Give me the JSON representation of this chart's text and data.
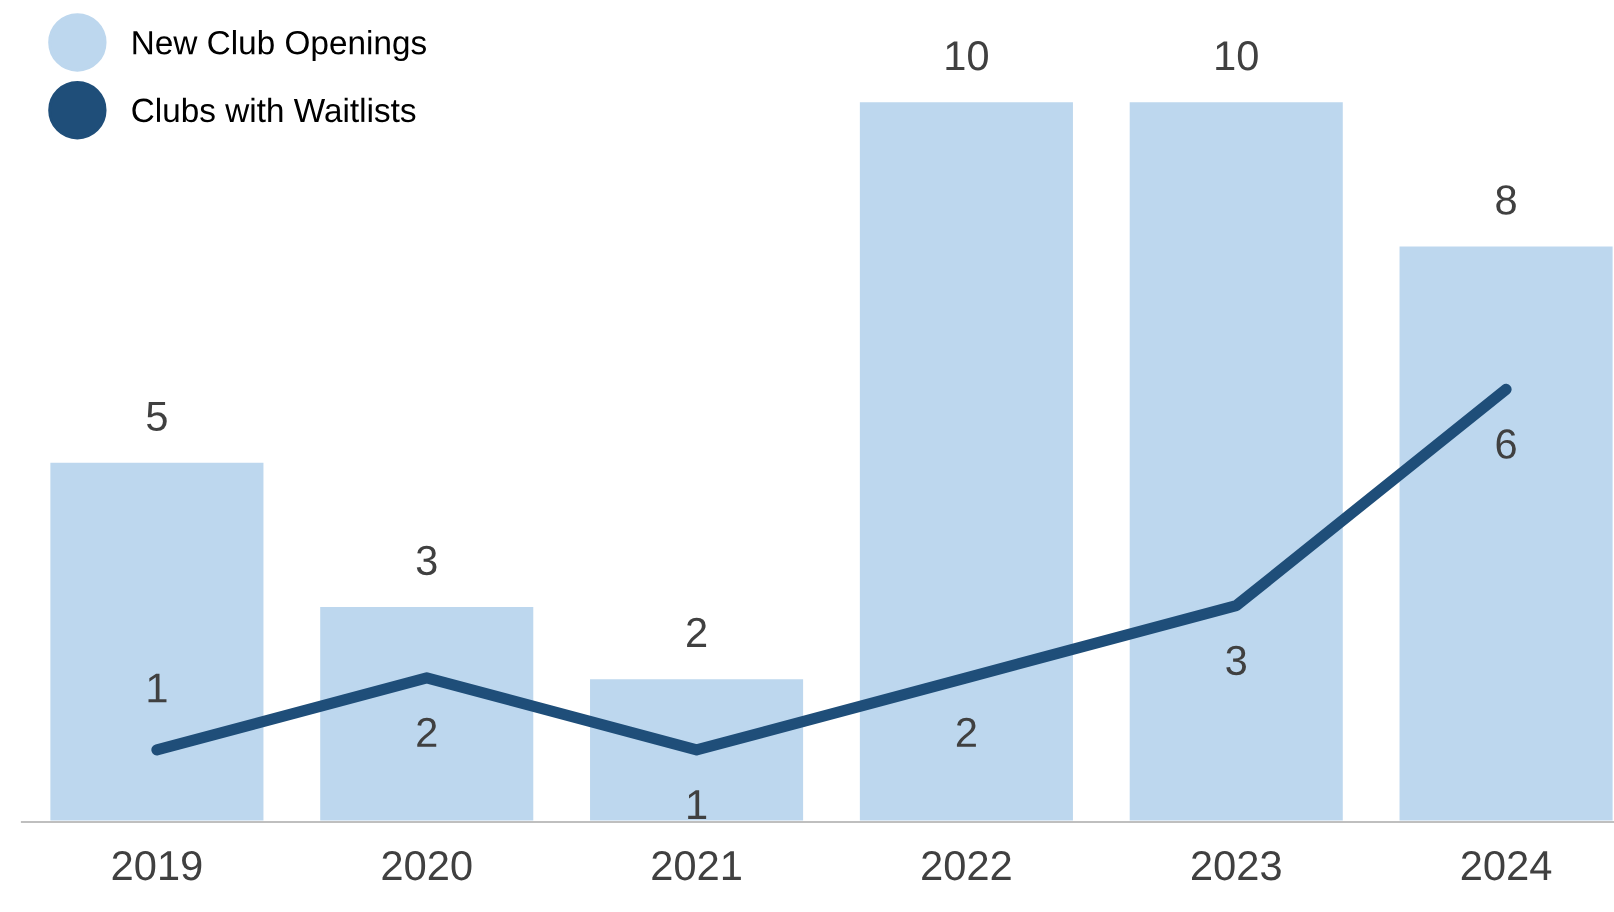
{
  "chart_data": {
    "type": "bar",
    "categories": [
      "2019",
      "2020",
      "2021",
      "2022",
      "2023",
      "2024"
    ],
    "series": [
      {
        "name": "New Club Openings",
        "color": "#bdd7ee",
        "values": [
          5,
          3,
          2,
          10,
          10,
          8
        ]
      },
      {
        "name": "Clubs with Waitlists",
        "type": "line",
        "color": "#1f4e79",
        "values": [
          1,
          2,
          1,
          2,
          3,
          6
        ]
      }
    ],
    "tick_labels": "x",
    "data_labels": true,
    "legend": "top left",
    "grid": false,
    "marker": "none",
    "line_style": "solid"
  }
}
